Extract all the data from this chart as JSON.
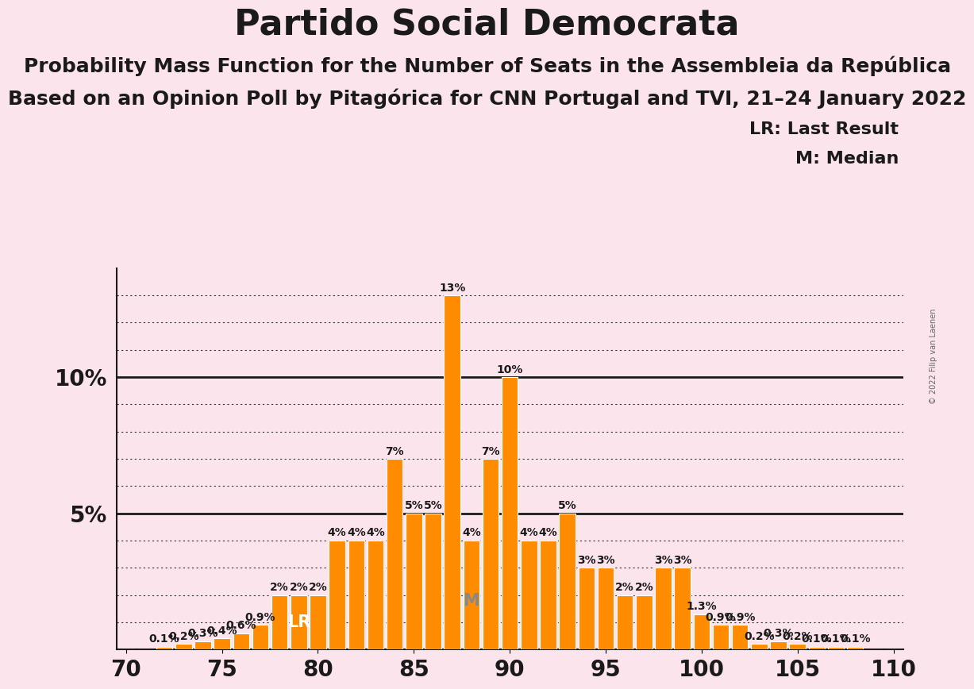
{
  "title": "Partido Social Democrata",
  "subtitle1": "Probability Mass Function for the Number of Seats in the Assembleia da República",
  "subtitle2": "Based on an Opinion Poll by Pitagórica for CNN Portugal and TVI, 21–24 January 2022",
  "legend_lr": "LR: Last Result",
  "legend_m": "M: Median",
  "copyright": "© 2022 Filip van Laenen",
  "background_color": "#fce4ec",
  "bar_color": "#FF8C00",
  "seats": [
    70,
    71,
    72,
    73,
    74,
    75,
    76,
    77,
    78,
    79,
    80,
    81,
    82,
    83,
    84,
    85,
    86,
    87,
    88,
    89,
    90,
    91,
    92,
    93,
    94,
    95,
    96,
    97,
    98,
    99,
    100,
    101,
    102,
    103,
    104,
    105,
    106,
    107,
    108,
    109,
    110
  ],
  "probabilities": [
    0.0,
    0.0,
    0.1,
    0.2,
    0.3,
    0.4,
    0.6,
    0.9,
    2.0,
    2.0,
    2.0,
    4.0,
    4.0,
    4.0,
    7.0,
    5.0,
    5.0,
    13.0,
    4.0,
    7.0,
    10.0,
    4.0,
    4.0,
    5.0,
    3.0,
    3.0,
    2.0,
    2.0,
    3.0,
    3.0,
    1.3,
    0.9,
    0.9,
    0.2,
    0.3,
    0.2,
    0.1,
    0.1,
    0.1,
    0.0,
    0.0
  ],
  "last_result": 79,
  "median": 88,
  "xlim": [
    69.5,
    110.5
  ],
  "ylim": [
    0,
    14
  ],
  "title_fontsize": 32,
  "subtitle_fontsize": 18,
  "bar_label_fontsize": 10,
  "tick_fontsize": 20,
  "legend_fontsize": 16
}
